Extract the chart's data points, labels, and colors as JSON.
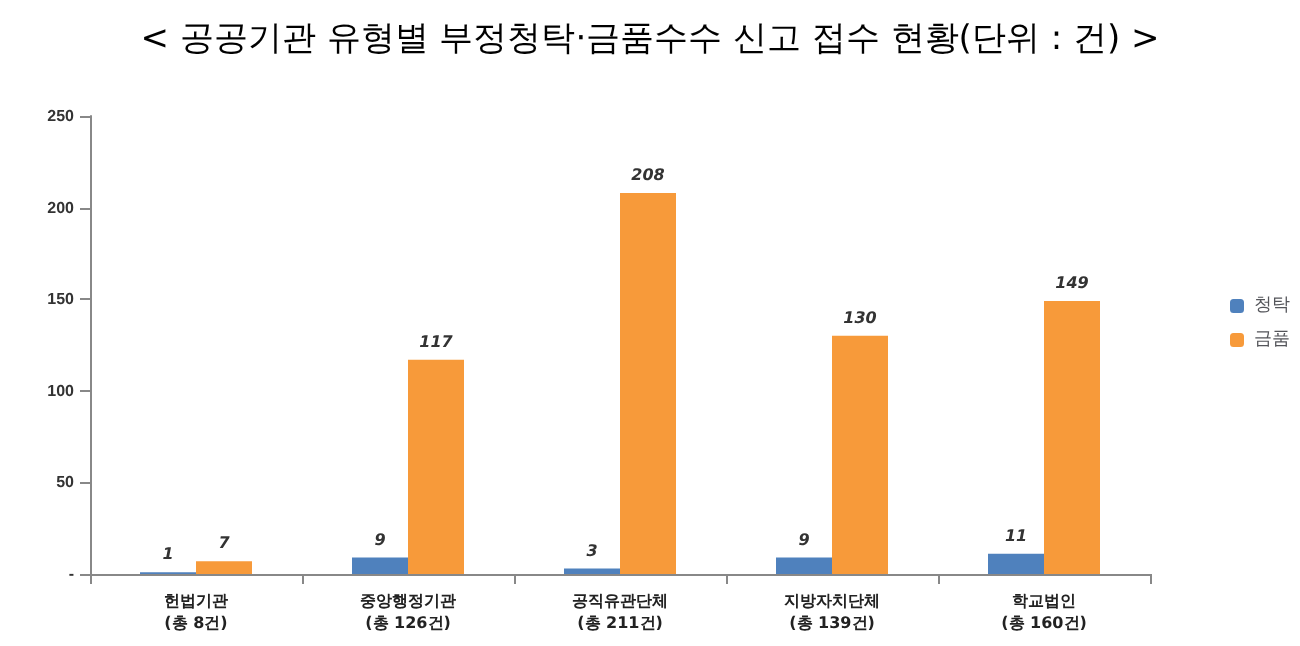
{
  "chart_data": {
    "type": "bar",
    "title": "< 공공기관 유형별 부정청탁·금품수수 신고 접수 현황(단위 : 건) >",
    "categories": [
      "헌법기관\n(총 8건)",
      "중앙행정기관\n(총 126건)",
      "공직유관단체\n(총 211건)",
      "지방자치단체\n(총 139건)",
      "학교법인\n(총 160건)"
    ],
    "series": [
      {
        "name": "청탁",
        "color": "#4f81bd",
        "values": [
          1,
          9,
          3,
          9,
          11
        ]
      },
      {
        "name": "금품",
        "color": "#f79a3a",
        "values": [
          7,
          117,
          208,
          130,
          149
        ]
      }
    ],
    "ylim": [
      0,
      250
    ],
    "yticks": [
      {
        "value": 0,
        "label": "-"
      },
      50,
      100,
      150,
      200,
      250
    ],
    "grid": false,
    "legend": "right",
    "data_labels": true
  }
}
